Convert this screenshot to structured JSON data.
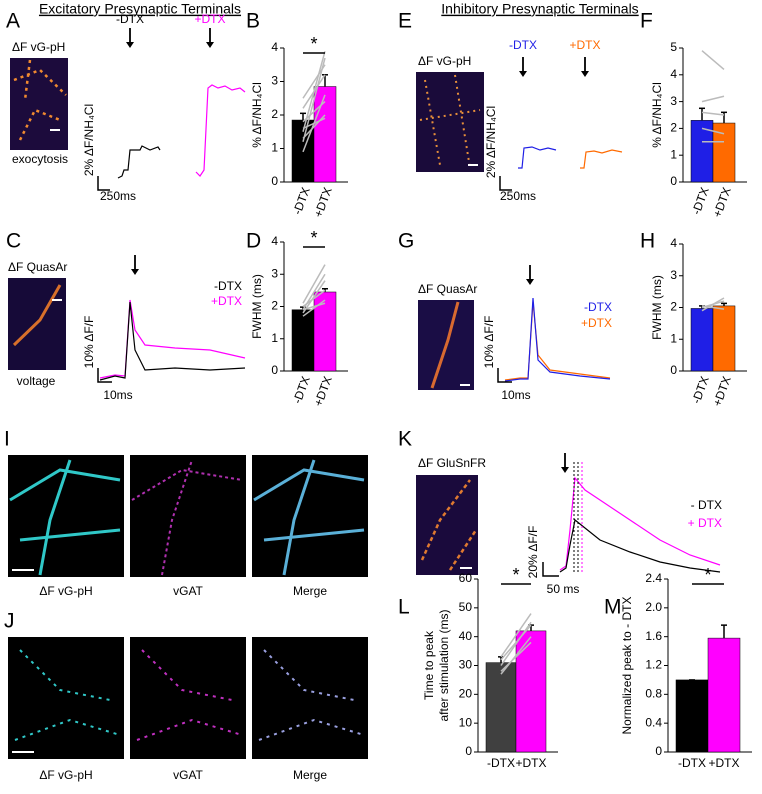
{
  "figure": {
    "headers": [
      "Excitatory Presynaptic Terminals",
      "Inhibitory Presynaptic Terminals"
    ],
    "letters": [
      "A",
      "B",
      "C",
      "D",
      "E",
      "F",
      "G",
      "H",
      "I",
      "J",
      "K",
      "L",
      "M"
    ],
    "texts": {
      "A": [
        "ΔF vG-pH",
        "exocytosis",
        "-DTX",
        "+DTX",
        "2% ΔF/NH₄Cl",
        "250ms"
      ],
      "C": [
        "ΔF QuasAr",
        "voltage",
        "-DTX",
        "+DTX",
        "10% ΔF/F",
        "10ms"
      ],
      "E": [
        "ΔF vG-pH",
        "-DTX",
        "+DTX",
        "2% ΔF/NH₄Cl",
        "250ms"
      ],
      "G": [
        "ΔF QuasAr",
        "-DTX",
        "+DTX",
        "10% ΔF/F",
        "10ms"
      ],
      "I": [
        "ΔF vG-pH",
        "vGAT",
        "Merge"
      ],
      "J": [
        "ΔF vG-pH",
        "vGAT",
        "Merge"
      ],
      "K": [
        "ΔF GluSnFR",
        "- DTX",
        "+ DTX",
        "20% ΔF/F",
        "50 ms"
      ]
    }
  },
  "chart_data": [
    {
      "type": "bar",
      "ylabel": "% ΔF/NH₄Cl",
      "categories": [
        "-DTX",
        "+DTX"
      ],
      "values": [
        1.85,
        2.85
      ],
      "errors": [
        0.2,
        0.35
      ],
      "colors": [
        "#000000",
        "#ff00ff"
      ],
      "ylim": [
        0,
        4
      ],
      "yticks": [
        0,
        1,
        2,
        3,
        4
      ],
      "significance": "*"
    },
    {
      "type": "bar",
      "ylabel": "FWHM (ms)",
      "categories": [
        "-DTX",
        "+DTX"
      ],
      "values": [
        1.9,
        2.45
      ],
      "errors": [
        0.08,
        0.1
      ],
      "colors": [
        "#000000",
        "#ff00ff"
      ],
      "ylim": [
        0,
        4
      ],
      "yticks": [
        0,
        1,
        2,
        3,
        4
      ],
      "significance": "*"
    },
    {
      "type": "bar",
      "ylabel": "% ΔF/NH₄Cl",
      "categories": [
        "-DTX",
        "+DTX"
      ],
      "values": [
        2.3,
        2.2
      ],
      "errors": [
        0.45,
        0.4
      ],
      "colors": [
        "#1f1fe6",
        "#ff6a00"
      ],
      "ylim": [
        0,
        5
      ],
      "yticks": [
        0,
        1,
        2,
        3,
        4,
        5
      ]
    },
    {
      "type": "bar",
      "ylabel": "FWHM (ms)",
      "categories": [
        "-DTX",
        "+DTX"
      ],
      "values": [
        1.97,
        2.05
      ],
      "errors": [
        0.08,
        0.08
      ],
      "colors": [
        "#1f1fe6",
        "#ff6a00"
      ],
      "ylim": [
        0,
        4
      ],
      "yticks": [
        0,
        1,
        2,
        3,
        4
      ]
    },
    {
      "type": "bar",
      "ylabel": [
        "Time to peak",
        "after stimulation (ms)"
      ],
      "categories": [
        "-DTX",
        "+DTX"
      ],
      "values": [
        31,
        42
      ],
      "errors": [
        2,
        2
      ],
      "colors": [
        "#404040",
        "#ff00ff"
      ],
      "ylim": [
        0,
        60
      ],
      "yticks": [
        0,
        10,
        20,
        30,
        40,
        50,
        60
      ],
      "significance": "*"
    },
    {
      "type": "bar",
      "ylabel": "Normalized peak to - DTX",
      "categories": [
        "-DTX",
        "+DTX"
      ],
      "values": [
        1.0,
        1.58
      ],
      "errors": [
        0,
        0.18
      ],
      "colors": [
        "#000000",
        "#ff00ff"
      ],
      "ylim": [
        0,
        2.4
      ],
      "yticks": [
        0,
        0.4,
        0.8,
        1.2,
        1.6,
        {
          "value": 2.0,
          "label": "2.0"
        },
        2.4
      ],
      "significance": "*"
    }
  ]
}
